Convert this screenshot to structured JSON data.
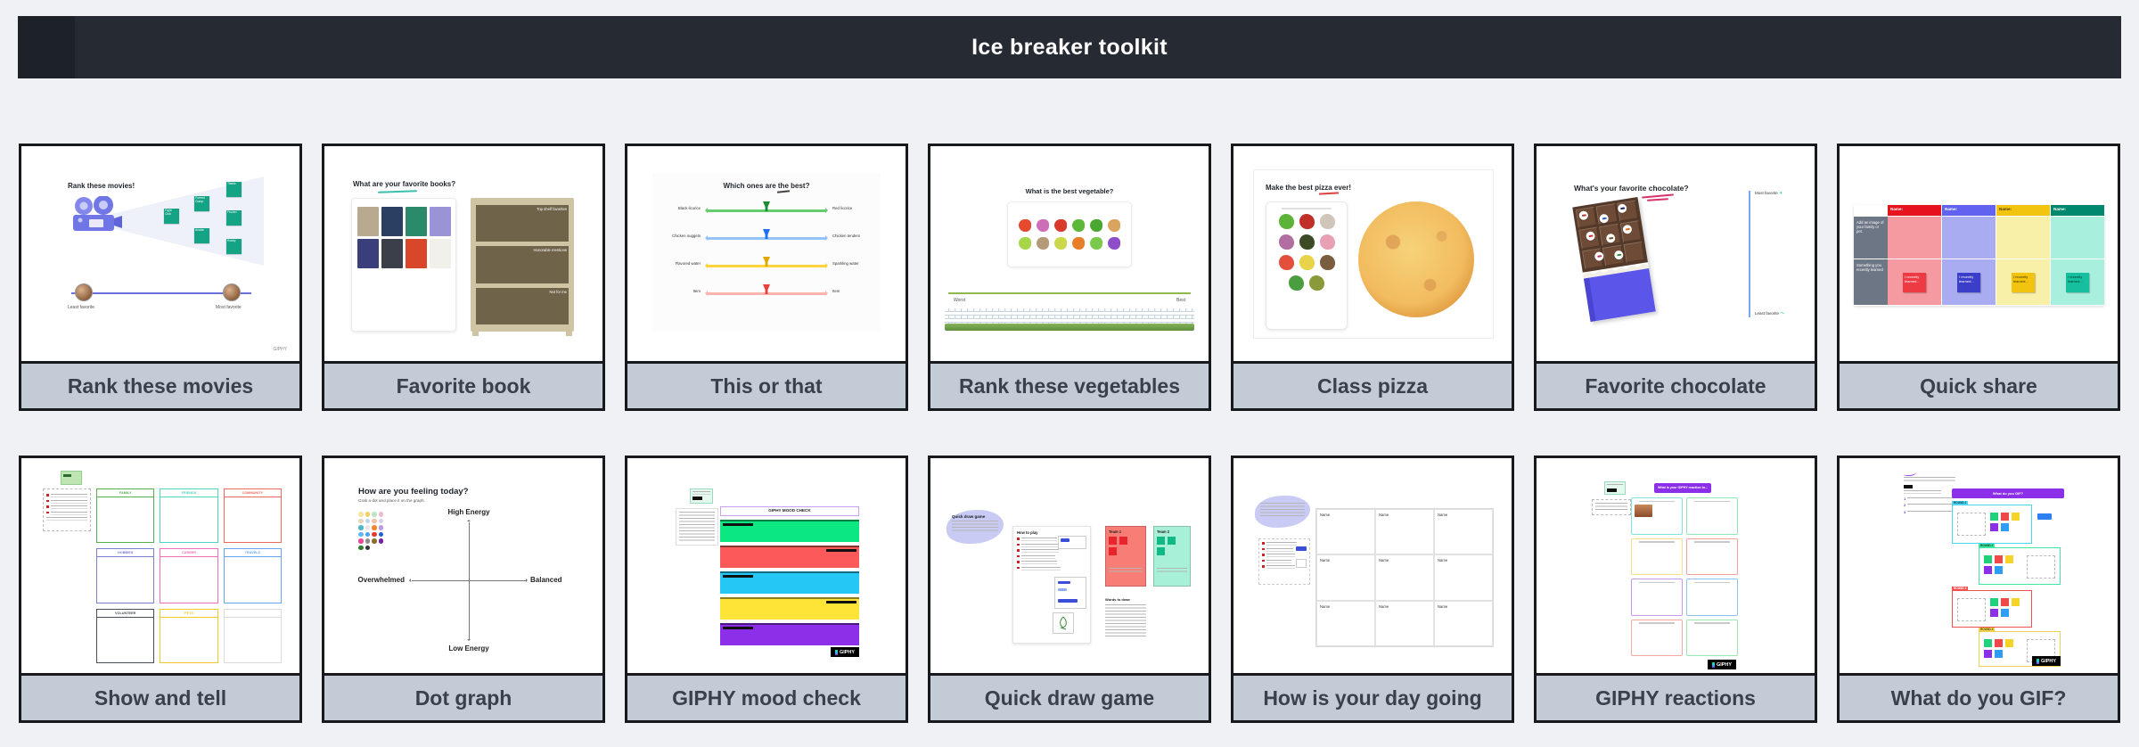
{
  "header": {
    "title": "Ice breaker toolkit",
    "bg": "#262b33"
  },
  "card_style": {
    "border": "#17191d",
    "label_bg": "#c3ccd6",
    "label_color": "#39424c"
  },
  "cards": [
    {
      "label": "Rank these movies",
      "thumb": {
        "title": "Rank these movies!",
        "note_color": "#14a384",
        "notes": [
          "Fight Club",
          "Forrest Gump",
          "Avatar",
          "Titanic",
          "Frozen",
          "Rocky"
        ],
        "left_label": "Least favorite",
        "right_label": "Most favorite",
        "watermark": "GIPHY"
      }
    },
    {
      "label": "Favorite book",
      "thumb": {
        "title": "What are your favorite books?",
        "book_colors": [
          "#b9a98e",
          "#2b3f63",
          "#2a8a6a",
          "#9a93d6",
          "#3a3e7a",
          "#3a3f4a",
          "#d9472b",
          "#f2f0ea"
        ],
        "shelf_labels": [
          "Top shelf favorites",
          "Honorable mentions",
          "Not for me"
        ]
      }
    },
    {
      "label": "This or that",
      "thumb": {
        "title": "Which ones are the best?",
        "rows": [
          {
            "left": "Black licorice",
            "right": "Red licorice",
            "line": "#66cc70",
            "pin": "#1d8c33"
          },
          {
            "left": "Chicken nuggets",
            "right": "Chicken tenders",
            "line": "#94c4f7",
            "pin": "#1f6ff2"
          },
          {
            "left": "Flavored water",
            "right": "Sparkling water",
            "line": "#ffd43a",
            "pin": "#e3a800"
          },
          {
            "left": "Item",
            "right": "Item",
            "line": "#ffb3ad",
            "pin": "#e8413c"
          }
        ]
      }
    },
    {
      "label": "Rank these vegetables",
      "thumb": {
        "title": "What is the best vegetable?",
        "veggie_colors": [
          "#e54a2e",
          "#cc6fb8",
          "#d93a2b",
          "#5cb83a",
          "#4aa832",
          "#d9a55e",
          "#a8d64a",
          "#b59a7a",
          "#c9d94a",
          "#e87f28",
          "#7ac94a",
          "#8e4ec9"
        ],
        "left_label": "Worst",
        "right_label": "Best"
      }
    },
    {
      "label": "Class pizza",
      "thumb": {
        "title": "Make the best pizza ever!",
        "topping_colors": [
          "#5cb338",
          "#c03028",
          "#cfc5b8",
          "#b06fa0",
          "#3d4a26",
          "#e8a0b4",
          "#e34f3a",
          "#e8d44a",
          "#7a5c3e",
          "#4a9e3f",
          "#8a9a3a"
        ]
      }
    },
    {
      "label": "Favorite chocolate",
      "thumb": {
        "title": "What's your favorite chocolate?",
        "top_label": "Most favorite",
        "bottom_label": "Least favorite"
      }
    },
    {
      "label": "Quick share",
      "thumb": {
        "row_labels": [
          "Add an image of your family or pet.",
          "Something you recently learned"
        ],
        "note_text": "I recently learned...",
        "columns": [
          {
            "header": "Name:",
            "header_bg": "#e6131f",
            "header_color": "#ffffff",
            "cell_bg": "#f59aa0",
            "note_bg": "#ee3b43",
            "note_color": "#ffffff"
          },
          {
            "header": "Name:",
            "header_bg": "#6163f0",
            "header_color": "#ffffff",
            "cell_bg": "#aaacf2",
            "note_bg": "#3b3ec9",
            "note_color": "#ffffff"
          },
          {
            "header": "Name:",
            "header_bg": "#f2c410",
            "header_color": "#4a3a00",
            "cell_bg": "#f8f0a8",
            "note_bg": "#f2c410",
            "note_color": "#403000"
          },
          {
            "header": "Name:",
            "header_bg": "#00886e",
            "header_color": "#ffffff",
            "cell_bg": "#a8f0dd",
            "note_bg": "#16bf9d",
            "note_color": "#00382d"
          }
        ]
      }
    },
    {
      "label": "Show and tell",
      "thumb": {
        "boxes": [
          {
            "label": "FAMILY",
            "color": "#57b14e"
          },
          {
            "label": "FRIENDS",
            "color": "#4ed6c3"
          },
          {
            "label": "COMMUNITY",
            "color": "#ef6a5e"
          },
          {
            "label": "HOBBIES",
            "color": "#7b7fd4"
          },
          {
            "label": "CAREER",
            "color": "#ef6eb8"
          },
          {
            "label": "TRAVELS",
            "color": "#6aa5f2"
          },
          {
            "label": "VOLUNTEER",
            "color": "#4a4f57"
          },
          {
            "label": "PETS",
            "color": "#f2c928"
          },
          {
            "label": "",
            "color": "#d9dadc"
          }
        ]
      }
    },
    {
      "label": "Dot graph",
      "thumb": {
        "title": "How are you feeling today?",
        "subtitle": "Grab a dot and place it on the graph.",
        "axis_top": "High Energy",
        "axis_bottom": "Low Energy",
        "axis_left": "Overwhelmed",
        "axis_right": "Balanced",
        "dot_colors": [
          "#f5e6a3",
          "#f0d060",
          "#bfe3c8",
          "#f2b8cc",
          "#e8d5b5",
          "#bcd6ef",
          "#f5c0a8",
          "#d5d0ea",
          "#52b5c9",
          "#e8e8e8",
          "#f5862e",
          "#b39ddb",
          "#64b5f6",
          "#42a5f5",
          "#e53935",
          "#1e63d0",
          "#ec4899",
          "#8d8d8d",
          "#8d6e2f",
          "#7b1fa2",
          "#2e7d32",
          "#333333"
        ]
      }
    },
    {
      "label": "GIPHY mood check",
      "thumb": {
        "title": "GIPHY MOOD CHECK",
        "logo": "GIPHY",
        "bands": [
          {
            "color": "#0be881",
            "align": "left"
          },
          {
            "color": "#fc5a5a",
            "align": "right"
          },
          {
            "color": "#25c7f5",
            "align": "left"
          },
          {
            "color": "#ffe438",
            "align": "right"
          },
          {
            "color": "#8b2fe8",
            "align": "left"
          }
        ]
      }
    },
    {
      "label": "Quick draw game",
      "thumb": {
        "blob_title": "Quick draw game",
        "panel_title": "How to play",
        "teams": [
          {
            "name": "Team 1",
            "bg": "#f77d76",
            "note": "#e8242c"
          },
          {
            "name": "Team 2",
            "bg": "#a8f0d8",
            "note": "#12b886"
          }
        ],
        "words_title": "Words to draw"
      }
    },
    {
      "label": "How is your day going",
      "thumb": {
        "cell_label": "Name"
      }
    },
    {
      "label": "GIPHY reactions",
      "thumb": {
        "banner": "What is your GIPHY reaction to...",
        "logo": "GIPHY",
        "box_colors": [
          "#7fe3e0",
          "#8ee8b8",
          "#f5e08a",
          "#f5a09a",
          "#c49af0",
          "#8ac3f5",
          "#f5a8a0",
          "#9ae8b0"
        ]
      }
    },
    {
      "label": "What do you GIF?",
      "thumb": {
        "banner": "What do you GIF?",
        "logo": "GIPHY",
        "rounds": [
          {
            "tag": "ROUND 1",
            "color": "#4dd6f0",
            "tag_color": "#063a42",
            "dir": "row"
          },
          {
            "tag": "ROUND 2",
            "color": "#3ee8a0",
            "tag_color": "#0a3a24",
            "dir": "row-reverse"
          },
          {
            "tag": "ROUND 3",
            "color": "#f05050",
            "tag_color": "#ffffff",
            "dir": "row"
          },
          {
            "tag": "ROUND 4",
            "color": "#f0d050",
            "tag_color": "#5a4a00",
            "dir": "row-reverse"
          }
        ],
        "sticky_colors": [
          "#21d07a",
          "#f04848",
          "#f5d327",
          "#8b2fe8",
          "#2e9df5"
        ]
      }
    }
  ]
}
